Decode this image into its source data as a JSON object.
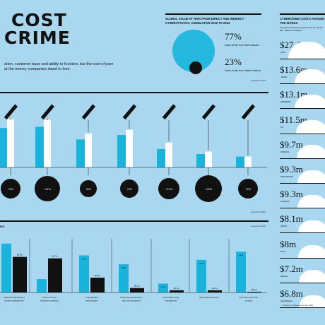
{
  "header": {
    "title_line1": "COST",
    "title_line2": "CRIME",
    "intro_line1": "ation, customer base and ability to function, but the cost of poor",
    "intro_line2": "at the money companies stand to lose"
  },
  "global": {
    "title": "GLOBAL VALUE AT RISK FROM DIRECT AND INDIRECT CYBERATTACKS, CUMULATIVE 2019 TO 2023",
    "pct1": "77%",
    "pct1_label": "Value at risk from direct attacks",
    "pct2": "23%",
    "pct2_label": "Value at risk from indirect attacks",
    "source": "Accenture 2019"
  },
  "colors": {
    "cyan": "#1ab3dc",
    "black": "#111111",
    "white": "#ffffff",
    "background": "#a9d7f0"
  },
  "sidebar": {
    "title": "CYBERCRIME COSTS AROUND THE WORLD",
    "subtitle": "Average annual cost of cybercrime by country ($m, millions of dollars)",
    "source": "Ponemon Institute/Accenture 2019",
    "items": [
      {
        "value": "$27.4m",
        "country": "USA",
        "amount": 27.4
      },
      {
        "value": "$13.6m",
        "country": "JAPAN",
        "amount": 13.6
      },
      {
        "value": "$13.1m",
        "country": "GERMANY",
        "amount": 13.1
      },
      {
        "value": "$11.5m",
        "country": "UK",
        "amount": 11.5
      },
      {
        "value": "$9.7m",
        "country": "FRANCE",
        "amount": 9.7
      },
      {
        "value": "$9.3m",
        "country": "SINGAPORE",
        "amount": 9.3
      },
      {
        "value": "$9.3m",
        "country": "CANADA",
        "amount": 9.3
      },
      {
        "value": "$8.1m",
        "country": "SPAIN",
        "amount": 8.1
      },
      {
        "value": "$8m",
        "country": "ITALY",
        "amount": 8.0
      },
      {
        "value": "$7.2m",
        "country": "BRAZIL",
        "amount": 7.2
      },
      {
        "value": "$6.8m",
        "country": "AUSTRALIA",
        "amount": 6.8
      }
    ]
  },
  "top_chart": {
    "source": "Accenture 2019",
    "circle_labels": [
      "+5%",
      "+11%",
      "+8%",
      "+9%",
      "+11%",
      "+15%",
      "+9%"
    ]
  },
  "bottom_chart": {
    "section_label": "IES",
    "source": "Accenture 2019",
    "value_labels": [
      [
        "",
        "$0.9m"
      ],
      [
        "",
        "$0.7m"
      ],
      [
        "10%",
        "$0.9m"
      ],
      [
        "18%",
        "$0.1m"
      ],
      [
        "17%",
        "$0.1m"
      ],
      [
        "31%",
        "$0.1m"
      ],
      [
        "34%",
        "$0.1m"
      ]
    ],
    "group_labels": [
      "Advanced identity and access management",
      "Cyber and user behaviour analytics",
      "Cryptographic technologies",
      "Enterprise governance, risk and compliance",
      "Automated policy management",
      "Data loss prevention",
      "Extensive perimeter controls"
    ]
  },
  "chart_data": [
    {
      "type": "bar",
      "title": "",
      "categories": [
        "1",
        "2",
        "3",
        "4",
        "5",
        "6",
        "7"
      ],
      "series": [
        {
          "values": [
            62,
            64,
            44,
            51,
            29,
            21,
            17
          ]
        },
        {
          "values": [
            76,
            75,
            53,
            59,
            39,
            25,
            17
          ]
        }
      ]
    },
    {
      "type": "bar",
      "title": "",
      "categories": [
        "Advanced identity and access management",
        "Cyber and user behaviour analytics",
        "Cryptographic technologies",
        "Enterprise governance, risk and compliance",
        "Automated policy management",
        "Data loss prevention",
        "Extensive perimeter controls"
      ],
      "series": [
        {
          "values": [
            66,
            18,
            50,
            38,
            12,
            44,
            55
          ]
        },
        {
          "values": [
            48,
            46,
            20,
            6,
            3,
            3,
            1
          ]
        }
      ]
    },
    {
      "type": "pie",
      "title": "GLOBAL VALUE AT RISK FROM DIRECT AND INDIRECT CYBERATTACKS, CUMULATIVE 2019 TO 2023",
      "labels": [
        "Value at risk from direct attacks",
        "Value at risk from indirect attacks"
      ],
      "values": [
        77,
        23
      ]
    }
  ]
}
